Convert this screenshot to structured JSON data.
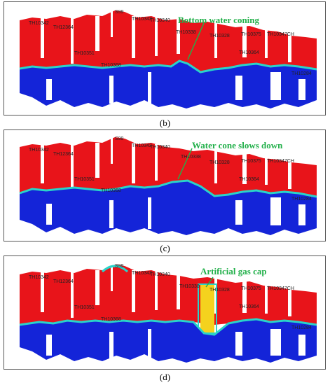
{
  "panels": [
    {
      "caption": "(b)",
      "annotation": "Bottom water coning",
      "wells": [
        "TH10342",
        "TH12364",
        "S99",
        "TH10342",
        "TH10340",
        "TH10338",
        "TH10328",
        "TH10375",
        "TH10347CH",
        "TH10351",
        "TH10368",
        "TH10364",
        "TH10284"
      ]
    },
    {
      "caption": "(c)",
      "annotation": "Water cone slows down",
      "wells": [
        "TH10342",
        "TH12364",
        "S99",
        "TH10342",
        "TH10340",
        "TH10338",
        "TH10328",
        "TH10375",
        "TH10347CH",
        "TH10351",
        "TH10368",
        "TH10364",
        "TH10284"
      ]
    },
    {
      "caption": "(d)",
      "annotation": "Artificial gas cap",
      "wells": [
        "TH10342",
        "TH12364",
        "S99",
        "TH10342",
        "TH10340",
        "TH10338",
        "TH10328",
        "TH10375",
        "TH10347CH",
        "TH10351",
        "TH10368",
        "TH10364",
        "TH10284"
      ]
    }
  ],
  "colors": {
    "oil": "#e8141a",
    "water": "#1424d8",
    "transition": "#2ad3c8",
    "gas_cap": "#f4d21e",
    "annotation": "#22b04a"
  }
}
